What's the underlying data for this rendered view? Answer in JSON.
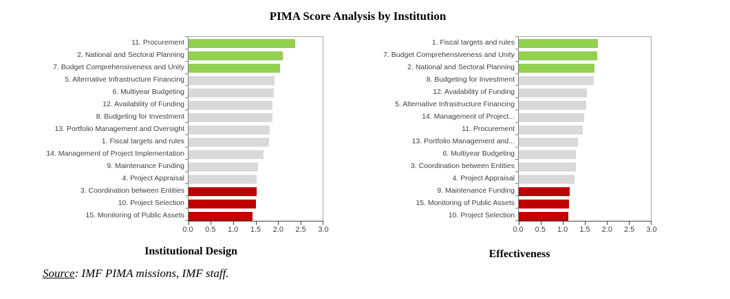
{
  "title": "PIMA Score Analysis by Institution",
  "source": {
    "label": "Source",
    "rest": ": IMF PIMA missions, IMF staff."
  },
  "colors": {
    "green": "#92d050",
    "gray": "#d9d9d9",
    "red": "#c00000"
  },
  "chart_data": [
    {
      "type": "bar",
      "orientation": "horizontal",
      "title": "Institutional Design",
      "xlabel": "",
      "ylabel": "",
      "xlim": [
        0,
        3
      ],
      "xticks": [
        "0.0",
        "0.5",
        "1.0",
        "1.5",
        "2.0",
        "2.5",
        "3.0"
      ],
      "grid": false,
      "legend": false,
      "categories": [
        "11. Procurement",
        "2. National and Sectoral Planning",
        "7. Budget Comprehensiveness and Unity",
        "5. Alternative Infrastructure Financing",
        "6. Multiyear Budgeting",
        "12. Availability of Funding",
        "8. Budgeting for Investment",
        "13. Portfolio Management and Oversight",
        "1. Fiscal targets and rules",
        "14. Management of Project Implementation",
        "9. Maintenance Funding",
        "4. Project Appraisal",
        "3. Coordination between Entities",
        "10. Project Selection",
        "15. Monitoring of Public Assets"
      ],
      "values": [
        2.38,
        2.1,
        2.05,
        1.93,
        1.9,
        1.88,
        1.87,
        1.81,
        1.8,
        1.67,
        1.56,
        1.53,
        1.52,
        1.5,
        1.43
      ],
      "bar_colors": [
        "green",
        "green",
        "green",
        "gray",
        "gray",
        "gray",
        "gray",
        "gray",
        "gray",
        "gray",
        "gray",
        "gray",
        "red",
        "red",
        "red"
      ]
    },
    {
      "type": "bar",
      "orientation": "horizontal",
      "title": "Effectiveness",
      "xlabel": "",
      "ylabel": "",
      "xlim": [
        0,
        3
      ],
      "xticks": [
        "0.0",
        "0.5",
        "1.0",
        "1.5",
        "2.0",
        "2.5",
        "3.0"
      ],
      "grid": false,
      "legend": false,
      "categories": [
        "1. Fiscal targets and rules",
        "7. Budget Comprehensiveness and Unity",
        "2. National and Sectoral Planning",
        "8. Budgeting for Investment",
        "12. Availability of Funding",
        "5. Alternative Infrastructure Financing",
        "14. Management of Project...",
        "11. Procurement",
        "13. Portfolio Management and...",
        "6. Multiyear Budgeting",
        "3. Coordination between Entities",
        "4. Project Appraisal",
        "9. Maintenance Funding",
        "15. Monitoring of Public Assets",
        "10. Project Selection"
      ],
      "values": [
        1.8,
        1.78,
        1.72,
        1.7,
        1.55,
        1.53,
        1.48,
        1.45,
        1.35,
        1.3,
        1.29,
        1.27,
        1.16,
        1.14,
        1.12
      ],
      "bar_colors": [
        "green",
        "green",
        "green",
        "gray",
        "gray",
        "gray",
        "gray",
        "gray",
        "gray",
        "gray",
        "gray",
        "gray",
        "red",
        "red",
        "red"
      ]
    }
  ]
}
